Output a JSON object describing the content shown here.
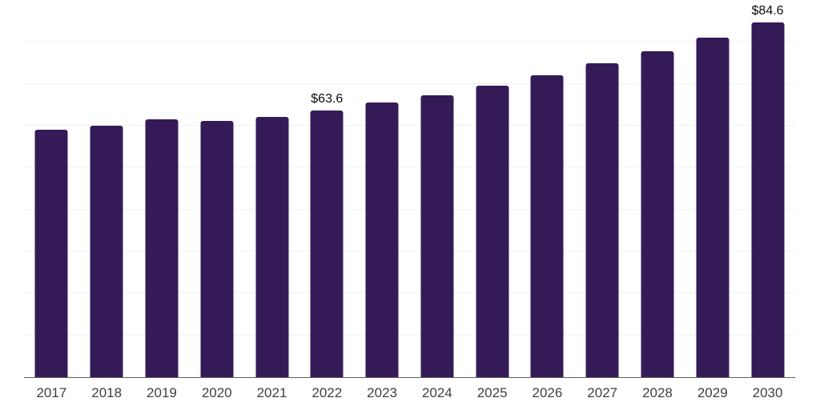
{
  "chart_data": {
    "type": "bar",
    "title": "",
    "xlabel": "",
    "ylabel": "",
    "categories": [
      "2017",
      "2018",
      "2019",
      "2020",
      "2021",
      "2022",
      "2023",
      "2024",
      "2025",
      "2026",
      "2027",
      "2028",
      "2029",
      "2030"
    ],
    "values": [
      59.0,
      60.0,
      61.5,
      61.1,
      62.1,
      63.6,
      65.5,
      67.2,
      69.6,
      72.1,
      75.0,
      77.7,
      81.1,
      84.6
    ],
    "data_labels": [
      "",
      "",
      "",
      "",
      "",
      "$63.6",
      "",
      "",
      "",
      "",
      "",
      "",
      "",
      "$84.6"
    ],
    "ylim": [
      0,
      90
    ],
    "gridline_step": 10,
    "grid": true,
    "legend": false,
    "y_axis_labels_visible": false,
    "colors": {
      "bar": "#341b58",
      "gridline": "#f2f2f2",
      "axis_line": "#5f5f5f",
      "tick_label": "#404040",
      "data_label": "#0d0d0d",
      "background": "#ffffff"
    }
  }
}
